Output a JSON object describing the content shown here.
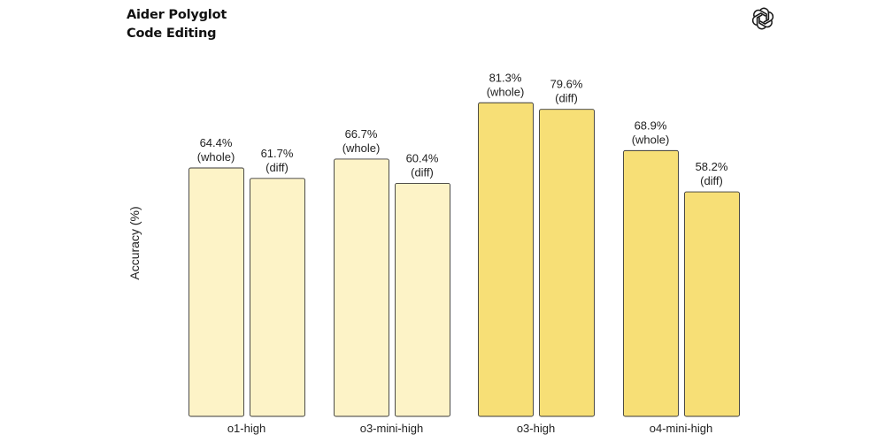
{
  "title_lines": [
    "Aider Polyglot",
    "Code Editing"
  ],
  "logo_icon": "openai-logo-icon",
  "colors": {
    "light_fill": "#fdf3c7",
    "dark_fill": "#f7df76",
    "bar_stroke": "#3a3a3a"
  },
  "chart_data": {
    "type": "bar",
    "title": "Aider Polyglot Code Editing",
    "xlabel": "",
    "ylabel": "Accuracy (%)",
    "ylim": [
      0,
      100
    ],
    "grid": false,
    "categories": [
      "o1-high",
      "o3-mini-high",
      "o3-high",
      "o4-mini-high"
    ],
    "series": [
      {
        "name": "whole",
        "values": [
          64.4,
          66.7,
          81.3,
          68.9
        ],
        "labels": [
          "64.4%",
          "66.7%",
          "81.3%",
          "68.9%"
        ]
      },
      {
        "name": "diff",
        "values": [
          61.7,
          60.4,
          79.6,
          58.2
        ],
        "labels": [
          "61.7%",
          "60.4%",
          "79.6%",
          "58.2%"
        ]
      }
    ],
    "fill_tone": [
      "light",
      "light",
      "dark",
      "dark"
    ]
  }
}
